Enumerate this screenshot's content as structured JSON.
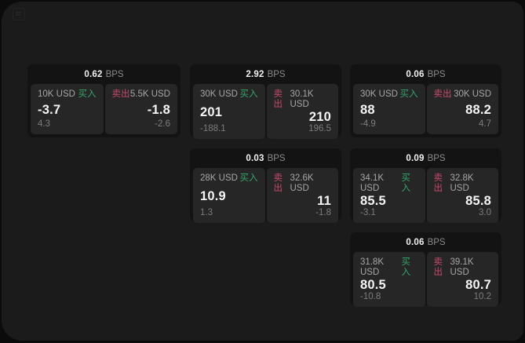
{
  "labels": {
    "buy": "买入",
    "sell": "卖出",
    "bps_unit": "BPS"
  },
  "colors": {
    "window_bg": "#1b1b1b",
    "card_bg": "#131313",
    "tile_bg": "#262626",
    "buy_green": "#34a66a",
    "sell_red": "#c84a6a"
  },
  "icons": {
    "top_left": "menu-icon"
  },
  "cards": [
    {
      "bps": "0.62",
      "buy": {
        "size": "10K USD",
        "value": "-3.7",
        "delta": "4.3"
      },
      "sell": {
        "size": "5.5K USD",
        "value": "-1.8",
        "delta": "-2.6"
      }
    },
    {
      "bps": "2.92",
      "buy": {
        "size": "30K USD",
        "value": "201",
        "delta": "-188.1"
      },
      "sell": {
        "size": "30.1K USD",
        "value": "210",
        "delta": "196.5"
      }
    },
    {
      "bps": "0.06",
      "buy": {
        "size": "30K USD",
        "value": "88",
        "delta": "-4.9"
      },
      "sell": {
        "size": "30K USD",
        "value": "88.2",
        "delta": "4.7"
      }
    },
    {
      "bps": "0.03",
      "buy": {
        "size": "28K USD",
        "value": "10.9",
        "delta": "1.3"
      },
      "sell": {
        "size": "32.6K USD",
        "value": "11",
        "delta": "-1.8"
      }
    },
    {
      "bps": "0.09",
      "buy": {
        "size": "34.1K USD",
        "value": "85.5",
        "delta": "-3.1"
      },
      "sell": {
        "size": "32.8K USD",
        "value": "85.8",
        "delta": "3.0"
      }
    },
    {
      "bps": "0.06",
      "buy": {
        "size": "31.8K USD",
        "value": "80.5",
        "delta": "-10.8"
      },
      "sell": {
        "size": "39.1K USD",
        "value": "80.7",
        "delta": "10.2"
      }
    }
  ]
}
